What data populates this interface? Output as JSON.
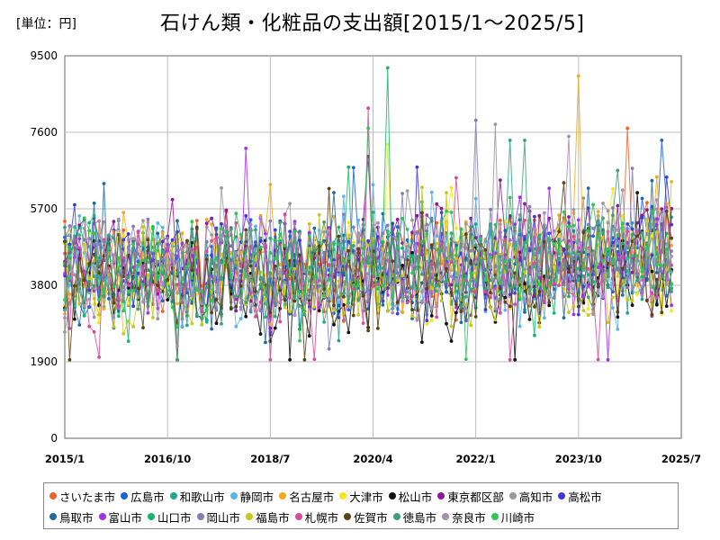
{
  "page": {
    "unit_label": "[単位：円]"
  },
  "chart_data": {
    "type": "line",
    "title": "石けん類・化粧品の支出額[2015/1～2025/5]",
    "xlabel": "",
    "ylabel": "",
    "ylim": [
      0,
      9500
    ],
    "y_ticks": [
      0,
      1900,
      3800,
      5700,
      7600,
      9500
    ],
    "x_tick_labels": [
      "2015/1",
      "2016/10",
      "2018/7",
      "2020/4",
      "2022/1",
      "2023/10",
      "2025/7"
    ],
    "x_range_months": [
      0,
      126
    ],
    "months": 125,
    "legend_position": "bottom",
    "grid": true,
    "series": [
      {
        "name": "さいたま市",
        "color": "#f0622a",
        "base": 4350,
        "peak_month": 115,
        "peak_value": 7700
      },
      {
        "name": "広島市",
        "color": "#1a63d8",
        "base": 4300,
        "peak_month": 122,
        "peak_value": 7400
      },
      {
        "name": "和歌山市",
        "color": "#22a884",
        "base": 4200,
        "peak_month": 91,
        "peak_value": 7400
      },
      {
        "name": "静岡市",
        "color": "#5ab4e8",
        "base": 4000,
        "peak_month": 63,
        "peak_value": 6300
      },
      {
        "name": "名古屋市",
        "color": "#f2a81d",
        "base": 4250,
        "peak_month": 105,
        "peak_value": 9000
      },
      {
        "name": "大津市",
        "color": "#f6e61a",
        "base": 4100,
        "peak_month": 66,
        "peak_value": 7300
      },
      {
        "name": "松山市",
        "color": "#111111",
        "base": 3700,
        "peak_month": 117,
        "peak_value": 6100
      },
      {
        "name": "東京都区部",
        "color": "#8b1a9a",
        "base": 4500,
        "peak_month": 62,
        "peak_value": 7000
      },
      {
        "name": "高知市",
        "color": "#999999",
        "base": 4400,
        "peak_month": 88,
        "peak_value": 7800
      },
      {
        "name": "高松市",
        "color": "#3d3ad8",
        "base": 4150,
        "peak_month": 2,
        "peak_value": 5800
      },
      {
        "name": "鳥取市",
        "color": "#1f6aa0",
        "base": 4050,
        "peak_month": 120,
        "peak_value": 6400
      },
      {
        "name": "富山市",
        "color": "#a333e6",
        "base": 4200,
        "peak_month": 37,
        "peak_value": 7200
      },
      {
        "name": "山口市",
        "color": "#17b86a",
        "base": 4100,
        "peak_month": 66,
        "peak_value": 9200
      },
      {
        "name": "岡山市",
        "color": "#8a7ab8",
        "base": 4300,
        "peak_month": 84,
        "peak_value": 7900
      },
      {
        "name": "福島市",
        "color": "#c8c81a",
        "base": 3900,
        "peak_month": 78,
        "peak_value": 6100
      },
      {
        "name": "札幌市",
        "color": "#d94a9c",
        "base": 4000,
        "peak_month": 62,
        "peak_value": 8200
      },
      {
        "name": "佐賀市",
        "color": "#5a4410",
        "base": 3950,
        "peak_month": 73,
        "peak_value": 5600
      },
      {
        "name": "徳島市",
        "color": "#3fa078",
        "base": 4100,
        "peak_month": 94,
        "peak_value": 7400
      },
      {
        "name": "奈良市",
        "color": "#a68fb0",
        "base": 4250,
        "peak_month": 103,
        "peak_value": 7500
      },
      {
        "name": "川崎市",
        "color": "#2ec45a",
        "base": 4350,
        "peak_month": 62,
        "peak_value": 7700
      }
    ]
  }
}
